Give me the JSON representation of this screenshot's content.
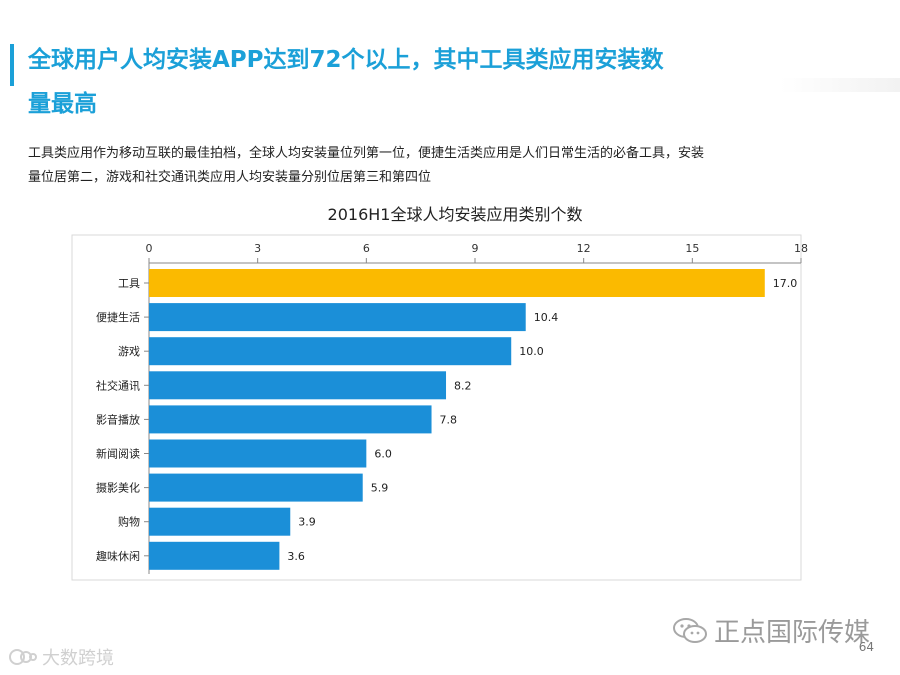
{
  "header": {
    "title": "全球用户人均安装APP达到72个以上，其中工具类应用安装数量最高",
    "subtitle": "工具类应用作为移动互联的最佳拍档，全球人均安装量位列第一位，便捷生活类应用是人们日常生活的必备工具，安装量位居第二，游戏和社交通讯类应用人均安装量分别位居第三和第四位"
  },
  "chart_data": {
    "type": "bar",
    "orientation": "horizontal",
    "title": "2016H1全球人均安装应用类别个数",
    "categories": [
      "工具",
      "便捷生活",
      "游戏",
      "社交通讯",
      "影音播放",
      "新闻阅读",
      "摄影美化",
      "购物",
      "趣味休闲"
    ],
    "values": [
      17.0,
      10.4,
      10.0,
      8.2,
      7.8,
      6.0,
      5.9,
      3.9,
      3.6
    ],
    "value_labels": [
      "17.0",
      "10.4",
      "10.0",
      "8.2",
      "7.8",
      "6.0",
      "5.9",
      "3.9",
      "3.6"
    ],
    "xlim": [
      0,
      18
    ],
    "xticks": [
      0,
      3,
      6,
      9,
      12,
      15,
      18
    ],
    "axis_position": "top",
    "grid": false,
    "colors": {
      "highlight": "#FBBA00",
      "default": "#1B8FD8"
    }
  },
  "footer": {
    "brand": "正点国际传媒",
    "page_number": "64",
    "logo_text": "大数跨境"
  },
  "colors": {
    "accent": "#1BA0D8",
    "text": "#222222",
    "muted": "#9A9A9A"
  }
}
